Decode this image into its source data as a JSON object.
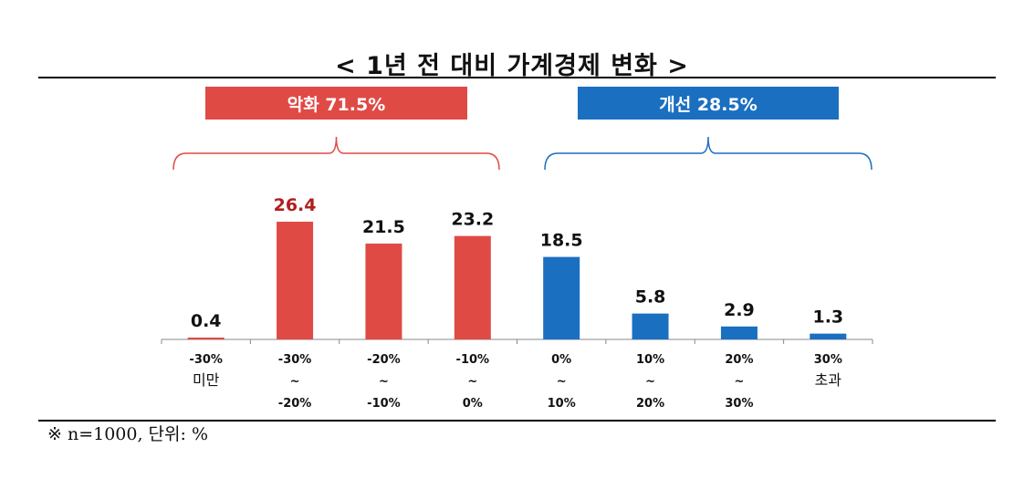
{
  "title": "< 1년 전 대비 가계경제 변화 >",
  "groups": {
    "negative": {
      "label": "악화 71.5%",
      "color": "#e04a45"
    },
    "positive": {
      "label": "개선 28.5%",
      "color": "#1a6fc0"
    }
  },
  "footnote": "※ n=1000, 단위: %",
  "chart_data": {
    "type": "bar",
    "categories": [
      [
        "-30%",
        "미만"
      ],
      [
        "-30%",
        "~",
        "-20%"
      ],
      [
        "-20%",
        "~",
        "-10%"
      ],
      [
        "-10%",
        "~",
        "0%"
      ],
      [
        "0%",
        "~",
        "10%"
      ],
      [
        "10%",
        "~",
        "20%"
      ],
      [
        "20%",
        "~",
        "30%"
      ],
      [
        "30%",
        "초과"
      ]
    ],
    "values": [
      0.4,
      26.4,
      21.5,
      23.2,
      18.5,
      5.8,
      2.9,
      1.3
    ],
    "bar_colors": [
      "#e04a45",
      "#e04a45",
      "#e04a45",
      "#e04a45",
      "#1a6fc0",
      "#1a6fc0",
      "#1a6fc0",
      "#1a6fc0"
    ],
    "label_colors": [
      "#111111",
      "#b01e1e",
      "#111111",
      "#111111",
      "#111111",
      "#111111",
      "#111111",
      "#111111"
    ],
    "ylim": [
      0,
      26.4
    ],
    "grid": false,
    "title": "< 1년 전 대비 가계경제 변화 >",
    "xlabel": "",
    "ylabel": ""
  }
}
